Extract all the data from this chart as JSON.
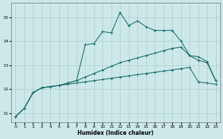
{
  "xlabel": "Humidex (Indice chaleur)",
  "xlim": [
    -0.5,
    23.5
  ],
  "ylim": [
    10.6,
    15.6
  ],
  "yticks": [
    11,
    12,
    13,
    14,
    15
  ],
  "xticks": [
    0,
    1,
    2,
    3,
    4,
    5,
    6,
    7,
    8,
    9,
    10,
    11,
    12,
    13,
    14,
    15,
    16,
    17,
    18,
    19,
    20,
    21,
    22,
    23
  ],
  "bg_color": "#cce8e8",
  "line_color": "#1a6b6b",
  "grid_color": "#aacccc",
  "line_jagged": [
    10.85,
    11.2,
    11.85,
    12.05,
    12.1,
    12.15,
    12.25,
    12.35,
    13.85,
    13.9,
    14.4,
    14.35,
    15.2,
    14.65,
    14.85,
    14.6,
    14.45,
    14.45,
    14.45,
    14.0,
    13.4,
    13.2,
    13.1,
    12.35
  ],
  "line_upper": [
    10.85,
    11.2,
    11.85,
    12.05,
    12.1,
    12.15,
    12.25,
    12.35,
    12.5,
    12.65,
    12.8,
    12.95,
    13.1,
    13.2,
    13.3,
    13.4,
    13.5,
    13.6,
    13.7,
    13.75,
    13.4,
    13.35,
    13.15,
    12.35
  ],
  "line_lower": [
    10.85,
    11.2,
    11.85,
    12.05,
    12.1,
    12.15,
    12.2,
    12.25,
    12.3,
    12.35,
    12.4,
    12.45,
    12.5,
    12.55,
    12.6,
    12.65,
    12.7,
    12.75,
    12.8,
    12.85,
    12.9,
    12.3,
    12.25,
    12.2
  ]
}
